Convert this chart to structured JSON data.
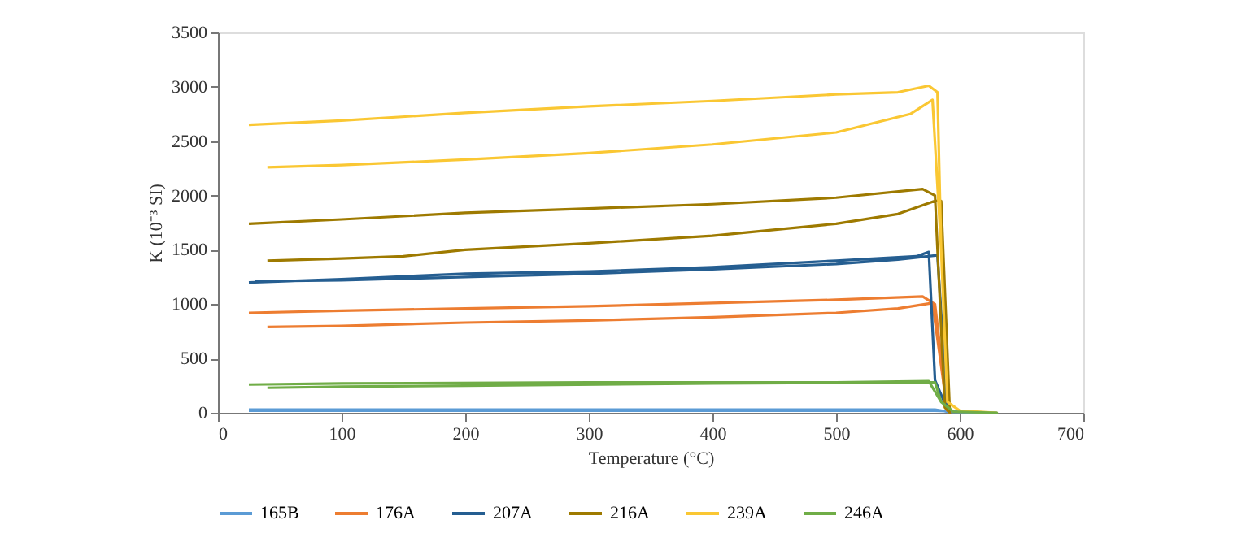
{
  "chart_data": {
    "type": "line",
    "xlabel": "Temperature (°C)",
    "ylabel": "K (10⁻³ SI)",
    "xlim": [
      0,
      700
    ],
    "xticks": [
      0,
      100,
      200,
      300,
      400,
      500,
      600,
      700
    ],
    "ylim": [
      0,
      3500
    ],
    "yticks": [
      0,
      500,
      1000,
      1500,
      2000,
      2500,
      3000,
      3500
    ],
    "grid": false,
    "legend": "bottom",
    "marker": "none",
    "line_style": "solid",
    "series": [
      {
        "name": "165B",
        "color": "#5b9bd5",
        "x": [
          25,
          300,
          580,
          590,
          630,
          580,
          300,
          25
        ],
        "values": [
          30,
          30,
          30,
          10,
          0,
          20,
          20,
          20
        ]
      },
      {
        "name": "176A",
        "color": "#ed7d31",
        "x": [
          25,
          100,
          200,
          300,
          400,
          500,
          570,
          580,
          590,
          578,
          550,
          500,
          400,
          300,
          200,
          100,
          40
        ],
        "values": [
          920,
          940,
          960,
          980,
          1010,
          1040,
          1070,
          1000,
          20,
          1010,
          960,
          920,
          880,
          850,
          830,
          800,
          790
        ]
      },
      {
        "name": "207A",
        "color": "#255e91",
        "x": [
          25,
          100,
          200,
          300,
          400,
          500,
          565,
          575,
          580,
          590,
          582,
          550,
          500,
          400,
          300,
          200,
          100,
          30
        ],
        "values": [
          1200,
          1230,
          1280,
          1300,
          1340,
          1400,
          1440,
          1480,
          300,
          30,
          1450,
          1410,
          1370,
          1320,
          1280,
          1250,
          1220,
          1210
        ]
      },
      {
        "name": "216A",
        "color": "#9e7a00",
        "x": [
          25,
          100,
          200,
          300,
          400,
          500,
          570,
          580,
          588,
          592,
          585,
          580,
          550,
          500,
          400,
          300,
          200,
          150,
          100,
          40
        ],
        "values": [
          1740,
          1780,
          1840,
          1880,
          1920,
          1980,
          2060,
          2000,
          50,
          0,
          1950,
          1950,
          1830,
          1740,
          1630,
          1560,
          1500,
          1440,
          1420,
          1400
        ]
      },
      {
        "name": "239A",
        "color": "#fac733",
        "x": [
          25,
          100,
          200,
          300,
          400,
          500,
          550,
          575,
          582,
          585,
          590,
          600,
          630,
          600,
          590,
          585,
          578,
          560,
          500,
          400,
          300,
          200,
          100,
          40
        ],
        "values": [
          2650,
          2690,
          2760,
          2820,
          2870,
          2930,
          2950,
          3010,
          2950,
          1500,
          100,
          20,
          0,
          20,
          100,
          1500,
          2880,
          2750,
          2580,
          2470,
          2390,
          2330,
          2280,
          2260
        ]
      },
      {
        "name": "246A",
        "color": "#70ad47",
        "x": [
          25,
          100,
          300,
          500,
          575,
          585,
          595,
          630,
          595,
          585,
          580,
          400,
          200,
          100,
          40
        ],
        "values": [
          260,
          270,
          280,
          280,
          290,
          100,
          10,
          0,
          10,
          100,
          280,
          270,
          250,
          240,
          230
        ]
      }
    ]
  }
}
